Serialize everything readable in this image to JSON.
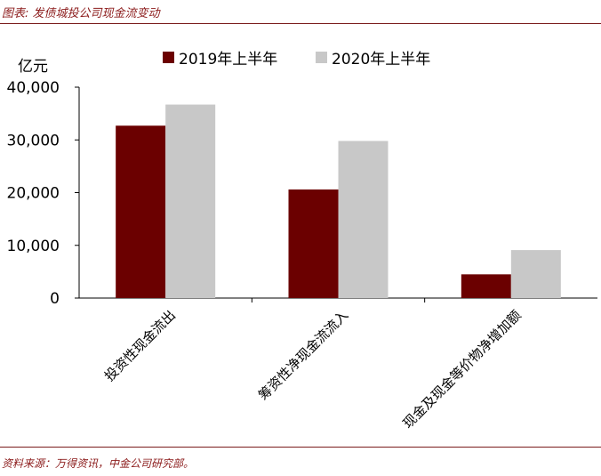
{
  "figure": {
    "title": "图表: 发债城投公司现金流变动",
    "source": "资料来源：万得资讯，中金公司研究部。"
  },
  "chart_data": {
    "type": "bar",
    "unit_label": "亿元",
    "categories": [
      "投资性现金流出",
      "筹资性净现金流流入",
      "现金及现金等价物净增加额"
    ],
    "series": [
      {
        "name": "2019年上半年",
        "values": [
          32700,
          20600,
          4500
        ],
        "color": "#6b0000"
      },
      {
        "name": "2020年上半年",
        "values": [
          36700,
          29800,
          9100
        ],
        "color": "#c8c8c8"
      }
    ],
    "y_ticks": [
      "0",
      "10,000",
      "20,000",
      "30,000",
      "40,000"
    ],
    "ylim": [
      0,
      40000
    ],
    "grid": false,
    "legend": "top"
  }
}
